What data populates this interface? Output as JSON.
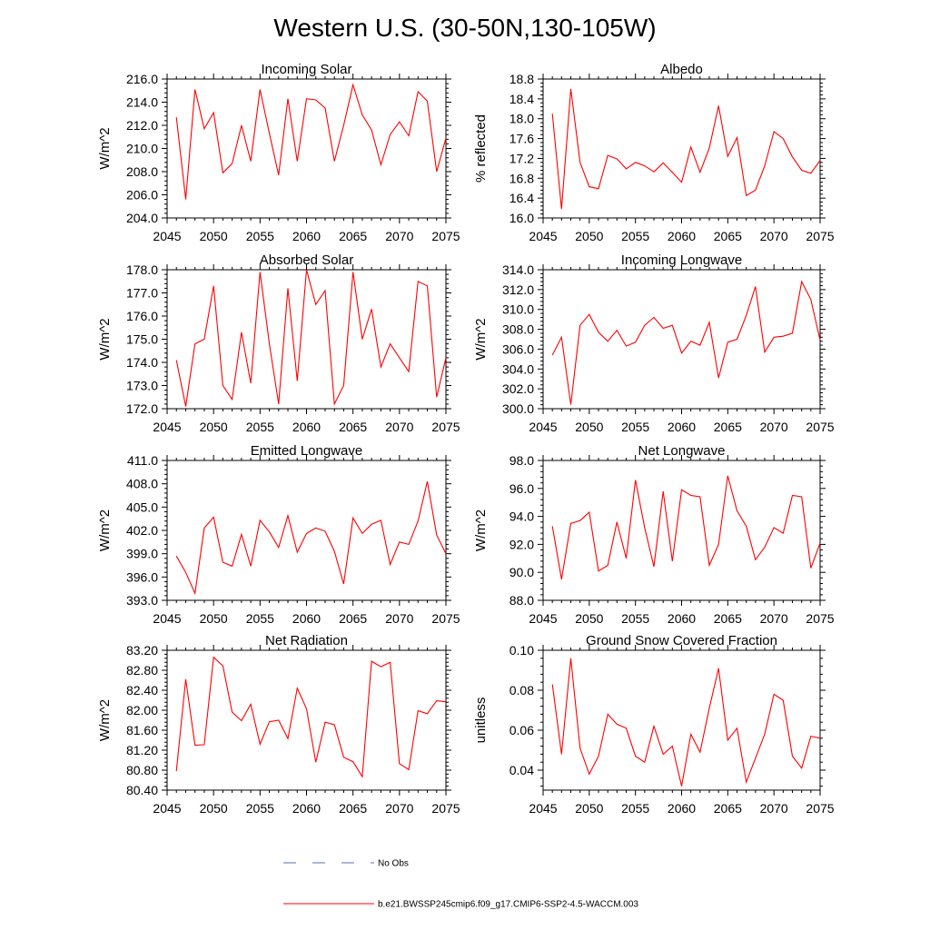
{
  "figure": {
    "title": "Western U.S. (30-50N,130-105W)",
    "legend": [
      {
        "label": "No Obs",
        "color": "#5a6fb8",
        "style": "dashed"
      },
      {
        "label": "b.e21.BWSSP245cmip6.f09_g17.CMIP6-SSP2-4.5-WACCM.003",
        "color": "#ff0000",
        "style": "solid"
      }
    ]
  },
  "chart_data": [
    {
      "type": "line",
      "title": "Incoming Solar",
      "ylabel": "W/m^2",
      "xlim": [
        2045,
        2075
      ],
      "ylim": [
        204,
        216
      ],
      "xticks": [
        2045,
        2050,
        2055,
        2060,
        2065,
        2070,
        2075
      ],
      "xtick_labels": [
        "2045",
        "2050",
        "2055",
        "2060",
        "2065",
        "2070",
        "2075"
      ],
      "yticks": [
        204,
        206,
        208,
        210,
        212,
        214,
        216
      ],
      "ytick_labels": [
        "204.0",
        "206.0",
        "208.0",
        "210.0",
        "212.0",
        "214.0",
        "216.0"
      ],
      "series": [
        {
          "color": "#ff0000",
          "x": [
            2046,
            2047,
            2048,
            2049,
            2050,
            2051,
            2052,
            2053,
            2054,
            2055,
            2056,
            2057,
            2058,
            2059,
            2060,
            2061,
            2062,
            2063,
            2064,
            2065,
            2066,
            2067,
            2068,
            2069,
            2070,
            2071,
            2072,
            2073,
            2074,
            2075
          ],
          "values": [
            212.7,
            205.6,
            215.1,
            211.7,
            213.1,
            207.9,
            208.7,
            212.0,
            208.9,
            215.1,
            211.3,
            207.7,
            214.3,
            208.9,
            214.3,
            214.2,
            213.5,
            208.9,
            212.0,
            215.5,
            212.9,
            211.6,
            208.6,
            211.2,
            212.3,
            211.1,
            214.9,
            214.1,
            208.0,
            210.9
          ]
        }
      ]
    },
    {
      "type": "line",
      "title": "Albedo",
      "ylabel": "% reflected",
      "xlim": [
        2045,
        2075
      ],
      "ylim": [
        16.0,
        18.8
      ],
      "xticks": [
        2045,
        2050,
        2055,
        2060,
        2065,
        2070,
        2075
      ],
      "xtick_labels": [
        "2045",
        "2050",
        "2055",
        "2060",
        "2065",
        "2070",
        "2075"
      ],
      "yticks": [
        16.0,
        16.4,
        16.8,
        17.2,
        17.6,
        18.0,
        18.4,
        18.8
      ],
      "ytick_labels": [
        "16.0",
        "16.4",
        "16.8",
        "17.2",
        "17.6",
        "18.0",
        "18.4",
        "18.8"
      ],
      "series": [
        {
          "color": "#ff0000",
          "x": [
            2046,
            2047,
            2048,
            2049,
            2050,
            2051,
            2052,
            2053,
            2054,
            2055,
            2056,
            2057,
            2058,
            2059,
            2060,
            2061,
            2062,
            2063,
            2064,
            2065,
            2066,
            2067,
            2068,
            2069,
            2070,
            2071,
            2072,
            2073,
            2074,
            2075
          ],
          "values": [
            18.1,
            16.18,
            18.6,
            17.12,
            16.63,
            16.59,
            17.26,
            17.19,
            16.99,
            17.12,
            17.05,
            16.93,
            17.11,
            16.92,
            16.72,
            17.43,
            16.92,
            17.41,
            18.26,
            17.24,
            17.62,
            16.45,
            16.56,
            17.05,
            17.74,
            17.6,
            17.23,
            16.96,
            16.9,
            17.16
          ]
        }
      ]
    },
    {
      "type": "line",
      "title": "Absorbed Solar",
      "ylabel": "W/m^2",
      "xlim": [
        2045,
        2075
      ],
      "ylim": [
        172,
        178
      ],
      "xticks": [
        2045,
        2050,
        2055,
        2060,
        2065,
        2070,
        2075
      ],
      "xtick_labels": [
        "2045",
        "2050",
        "2055",
        "2060",
        "2065",
        "2070",
        "2075"
      ],
      "yticks": [
        172,
        173,
        174,
        175,
        176,
        177,
        178
      ],
      "ytick_labels": [
        "172.0",
        "173.0",
        "174.0",
        "175.0",
        "176.0",
        "177.0",
        "178.0"
      ],
      "series": [
        {
          "color": "#ff0000",
          "x": [
            2046,
            2047,
            2048,
            2049,
            2050,
            2051,
            2052,
            2053,
            2054,
            2055,
            2056,
            2057,
            2058,
            2059,
            2060,
            2061,
            2062,
            2063,
            2064,
            2065,
            2066,
            2067,
            2068,
            2069,
            2070,
            2071,
            2072,
            2073,
            2074,
            2075
          ],
          "values": [
            174.1,
            172.1,
            174.8,
            175.0,
            177.3,
            173.0,
            172.4,
            175.3,
            173.1,
            177.9,
            174.8,
            172.2,
            177.2,
            173.2,
            178.0,
            176.5,
            177.1,
            172.2,
            173.0,
            177.9,
            175.0,
            176.3,
            173.8,
            174.8,
            174.2,
            173.6,
            177.5,
            177.3,
            172.5,
            174.2
          ]
        }
      ]
    },
    {
      "type": "line",
      "title": "Incoming Longwave",
      "ylabel": "W/m^2",
      "xlim": [
        2045,
        2075
      ],
      "ylim": [
        300,
        314
      ],
      "xticks": [
        2045,
        2050,
        2055,
        2060,
        2065,
        2070,
        2075
      ],
      "xtick_labels": [
        "2045",
        "2050",
        "2055",
        "2060",
        "2065",
        "2070",
        "2075"
      ],
      "yticks": [
        300,
        302,
        304,
        306,
        308,
        310,
        312,
        314
      ],
      "ytick_labels": [
        "300.0",
        "302.0",
        "304.0",
        "306.0",
        "308.0",
        "310.0",
        "312.0",
        "314.0"
      ],
      "series": [
        {
          "color": "#ff0000",
          "x": [
            2046,
            2047,
            2048,
            2049,
            2050,
            2051,
            2052,
            2053,
            2054,
            2055,
            2056,
            2057,
            2058,
            2059,
            2060,
            2061,
            2062,
            2063,
            2064,
            2065,
            2066,
            2067,
            2068,
            2069,
            2070,
            2071,
            2072,
            2073,
            2074,
            2075
          ],
          "values": [
            305.4,
            307.2,
            300.4,
            308.4,
            309.5,
            307.7,
            306.8,
            307.9,
            306.3,
            306.7,
            308.4,
            309.2,
            308.1,
            308.4,
            305.6,
            306.8,
            306.4,
            308.7,
            303.1,
            306.7,
            307.0,
            309.4,
            312.3,
            305.7,
            307.2,
            307.3,
            307.6,
            312.8,
            311.0,
            306.9
          ]
        }
      ]
    },
    {
      "type": "line",
      "title": "Emitted Longwave",
      "ylabel": "W/m^2",
      "xlim": [
        2045,
        2075
      ],
      "ylim": [
        393,
        411
      ],
      "xticks": [
        2045,
        2050,
        2055,
        2060,
        2065,
        2070,
        2075
      ],
      "xtick_labels": [
        "2045",
        "2050",
        "2055",
        "2060",
        "2065",
        "2070",
        "2075"
      ],
      "yticks": [
        393,
        396,
        399,
        402,
        405,
        408,
        411
      ],
      "ytick_labels": [
        "393.0",
        "396.0",
        "399.0",
        "402.0",
        "405.0",
        "408.0",
        "411.0"
      ],
      "series": [
        {
          "color": "#ff0000",
          "x": [
            2046,
            2047,
            2048,
            2049,
            2050,
            2051,
            2052,
            2053,
            2054,
            2055,
            2056,
            2057,
            2058,
            2059,
            2060,
            2061,
            2062,
            2063,
            2064,
            2065,
            2066,
            2067,
            2068,
            2069,
            2070,
            2071,
            2072,
            2073,
            2074,
            2075
          ],
          "values": [
            398.7,
            396.6,
            393.9,
            402.3,
            403.7,
            397.9,
            397.4,
            401.5,
            397.4,
            403.3,
            401.8,
            399.8,
            403.9,
            399.2,
            401.6,
            402.3,
            401.9,
            399.3,
            395.1,
            403.6,
            401.6,
            402.8,
            403.3,
            397.6,
            400.5,
            400.2,
            403.2,
            408.3,
            401.4,
            399.0
          ]
        }
      ]
    },
    {
      "type": "line",
      "title": "Net Longwave",
      "ylabel": "W/m^2",
      "xlim": [
        2045,
        2075
      ],
      "ylim": [
        88,
        98
      ],
      "xticks": [
        2045,
        2050,
        2055,
        2060,
        2065,
        2070,
        2075
      ],
      "xtick_labels": [
        "2045",
        "2050",
        "2055",
        "2060",
        "2065",
        "2070",
        "2075"
      ],
      "yticks": [
        88,
        90,
        92,
        94,
        96,
        98
      ],
      "ytick_labels": [
        "88.0",
        "90.0",
        "92.0",
        "94.0",
        "96.0",
        "98.0"
      ],
      "series": [
        {
          "color": "#ff0000",
          "x": [
            2046,
            2047,
            2048,
            2049,
            2050,
            2051,
            2052,
            2053,
            2054,
            2055,
            2056,
            2057,
            2058,
            2059,
            2060,
            2061,
            2062,
            2063,
            2064,
            2065,
            2066,
            2067,
            2068,
            2069,
            2070,
            2071,
            2072,
            2073,
            2074,
            2075
          ],
          "values": [
            93.3,
            89.5,
            93.5,
            93.7,
            94.3,
            90.1,
            90.5,
            93.6,
            91.0,
            96.6,
            93.2,
            90.4,
            95.8,
            90.8,
            95.9,
            95.5,
            95.4,
            90.5,
            92.0,
            96.9,
            94.4,
            93.3,
            90.9,
            91.8,
            93.2,
            92.8,
            95.5,
            95.4,
            90.3,
            92.1
          ]
        }
      ]
    },
    {
      "type": "line",
      "title": "Net Radiation",
      "ylabel": "W/m^2",
      "xlim": [
        2045,
        2075
      ],
      "ylim": [
        80.4,
        83.2
      ],
      "xticks": [
        2045,
        2050,
        2055,
        2060,
        2065,
        2070,
        2075
      ],
      "xtick_labels": [
        "2045",
        "2050",
        "2055",
        "2060",
        "2065",
        "2070",
        "2075"
      ],
      "yticks": [
        80.4,
        80.8,
        81.2,
        81.6,
        82.0,
        82.4,
        82.8,
        83.2
      ],
      "ytick_labels": [
        "80.40",
        "80.80",
        "81.20",
        "81.60",
        "82.00",
        "82.40",
        "82.80",
        "83.20"
      ],
      "series": [
        {
          "color": "#ff0000",
          "x": [
            2046,
            2047,
            2048,
            2049,
            2050,
            2051,
            2052,
            2053,
            2054,
            2055,
            2056,
            2057,
            2058,
            2059,
            2060,
            2061,
            2062,
            2063,
            2064,
            2065,
            2066,
            2067,
            2068,
            2069,
            2070,
            2071,
            2072,
            2073,
            2074,
            2075
          ],
          "values": [
            80.78,
            82.62,
            81.3,
            81.31,
            83.06,
            82.89,
            81.96,
            81.79,
            82.12,
            81.32,
            81.77,
            81.8,
            81.43,
            82.44,
            82.03,
            80.96,
            81.76,
            81.71,
            81.06,
            80.97,
            80.67,
            82.98,
            82.87,
            82.96,
            80.93,
            80.81,
            81.99,
            81.93,
            82.19,
            82.17
          ]
        }
      ]
    },
    {
      "type": "line",
      "title": "Ground Snow Covered Fraction",
      "ylabel": "unitless",
      "xlim": [
        2045,
        2075
      ],
      "ylim": [
        0.03,
        0.1
      ],
      "xticks": [
        2045,
        2050,
        2055,
        2060,
        2065,
        2070,
        2075
      ],
      "xtick_labels": [
        "2045",
        "2050",
        "2055",
        "2060",
        "2065",
        "2070",
        "2075"
      ],
      "yticks": [
        0.04,
        0.06,
        0.08,
        0.1
      ],
      "ytick_labels": [
        "0.04",
        "0.06",
        "0.08",
        "0.10"
      ],
      "series": [
        {
          "color": "#ff0000",
          "x": [
            2046,
            2047,
            2048,
            2049,
            2050,
            2051,
            2052,
            2053,
            2054,
            2055,
            2056,
            2057,
            2058,
            2059,
            2060,
            2061,
            2062,
            2063,
            2064,
            2065,
            2066,
            2067,
            2068,
            2069,
            2070,
            2071,
            2072,
            2073,
            2074,
            2075
          ],
          "values": [
            0.083,
            0.048,
            0.096,
            0.051,
            0.038,
            0.047,
            0.068,
            0.063,
            0.061,
            0.047,
            0.044,
            0.062,
            0.048,
            0.052,
            0.032,
            0.058,
            0.049,
            0.071,
            0.091,
            0.055,
            0.061,
            0.034,
            0.046,
            0.058,
            0.078,
            0.075,
            0.047,
            0.041,
            0.057,
            0.056
          ]
        }
      ]
    }
  ]
}
